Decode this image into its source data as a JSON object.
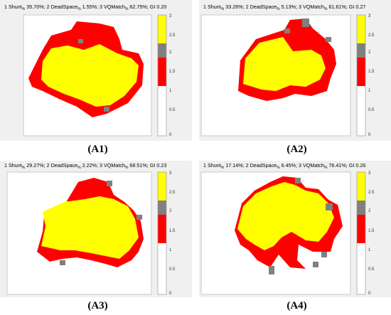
{
  "colors": {
    "yellow": "#ffff00",
    "gray": "#808080",
    "red": "#ff0000",
    "white": "#ffffff",
    "frame": "#f0f0f0"
  },
  "colorbar": {
    "ticks": [
      "0",
      "0.5",
      "1",
      "1.5",
      "2",
      "2.5",
      "3"
    ]
  },
  "panels": [
    {
      "caption": "(A1)",
      "title": {
        "shunt": "35.70%",
        "deadspace": "1.55%",
        "vqmatch": "62.75%",
        "gi": "0.20"
      },
      "legend_text": [
        "1 Shunt",
        "%",
        " 35.70%; 2 DeadSpace",
        "%",
        " 1.55%; 3 VQMatch",
        "%",
        " 62.75%; GI 0.20"
      ]
    },
    {
      "caption": "(A2)",
      "title": {
        "shunt": "33.26%",
        "deadspace": "5.13%",
        "vqmatch": "61.61%",
        "gi": "0.27"
      },
      "legend_text": [
        "1 Shunt",
        "%",
        " 33.26%; 2 DeadSpace",
        "%",
        " 5.13%; 3 VQMatch",
        "%",
        " 61.61%; GI 0.27"
      ]
    },
    {
      "caption": "(A3)",
      "title": {
        "shunt": "29.27%",
        "deadspace": "2.22%",
        "vqmatch": "68.51%",
        "gi": "0.23"
      },
      "legend_text": [
        "1 Shunt",
        "%",
        " 29.27%; 2 DeadSpace",
        "%",
        " 2.22%; 3 VQMatch",
        "%",
        " 68.51%; GI 0.23"
      ]
    },
    {
      "caption": "(A4)",
      "title": {
        "shunt": "17.14%",
        "deadspace": "6.45%",
        "vqmatch": "76.41%",
        "gi": "0.26"
      },
      "legend_text": [
        "1 Shunt",
        "%",
        " 17.14%; 2 DeadSpace",
        "%",
        " 6.45%; 3 VQMatch",
        "%",
        " 76.41%; GI 0.26"
      ]
    }
  ]
}
